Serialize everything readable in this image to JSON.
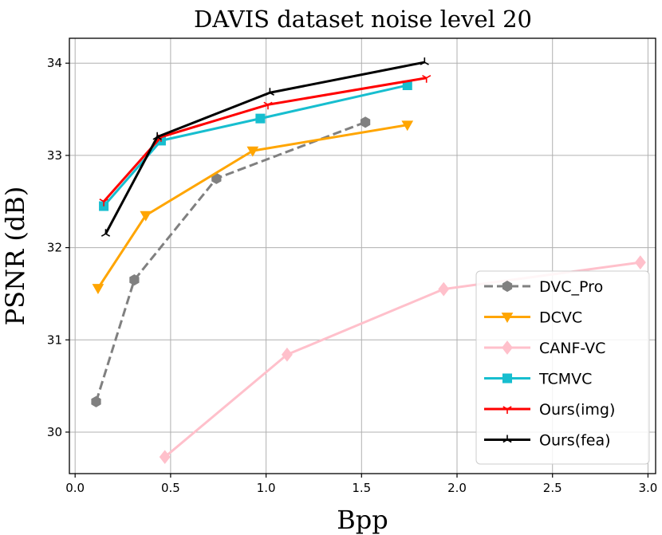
{
  "chart_data": {
    "type": "line",
    "title": "DAVIS dataset noise level 20",
    "xlabel": "Bpp",
    "ylabel": "PSNR (dB)",
    "xlim": [
      -0.03,
      3.04
    ],
    "ylim": [
      29.55,
      34.27
    ],
    "xticks": [
      0.0,
      0.5,
      1.0,
      1.5,
      2.0,
      2.5,
      3.0
    ],
    "xtick_labels": [
      "0.0",
      "0.5",
      "1.0",
      "1.5",
      "2.0",
      "2.5",
      "3.0"
    ],
    "yticks": [
      30,
      31,
      32,
      33,
      34
    ],
    "ytick_labels": [
      "30",
      "31",
      "32",
      "33",
      "34"
    ],
    "grid": true,
    "legend_position": "lower-right",
    "series": [
      {
        "name": "DVC_Pro",
        "color": "#808080",
        "line_style": "dashed",
        "marker": "hexagon",
        "x": [
          0.11,
          0.31,
          0.74,
          1.52
        ],
        "y": [
          30.33,
          31.65,
          32.75,
          33.36
        ]
      },
      {
        "name": "DCVC",
        "color": "#ffa500",
        "line_style": "solid",
        "marker": "triangle-down",
        "x": [
          0.12,
          0.37,
          0.93,
          1.74
        ],
        "y": [
          31.56,
          32.35,
          33.05,
          33.33
        ]
      },
      {
        "name": "CANF-VC",
        "color": "#ffc0cb",
        "line_style": "solid",
        "marker": "diamond",
        "x": [
          0.47,
          1.11,
          1.93,
          2.96
        ],
        "y": [
          29.73,
          30.84,
          31.55,
          31.84
        ]
      },
      {
        "name": "TCMVC",
        "color": "#17becf",
        "line_style": "solid",
        "marker": "square",
        "x": [
          0.15,
          0.45,
          0.97,
          1.74
        ],
        "y": [
          32.45,
          33.16,
          33.4,
          33.76
        ]
      },
      {
        "name": "Ours(img)",
        "color": "#ff0000",
        "line_style": "solid",
        "marker": "tri-down",
        "x": [
          0.15,
          0.45,
          1.01,
          1.84
        ],
        "y": [
          32.5,
          33.2,
          33.55,
          33.84
        ]
      },
      {
        "name": "Ours(fea)",
        "color": "#000000",
        "line_style": "solid",
        "marker": "tri-up",
        "x": [
          0.16,
          0.43,
          1.02,
          1.83
        ],
        "y": [
          32.15,
          33.2,
          33.68,
          34.01
        ]
      }
    ]
  }
}
